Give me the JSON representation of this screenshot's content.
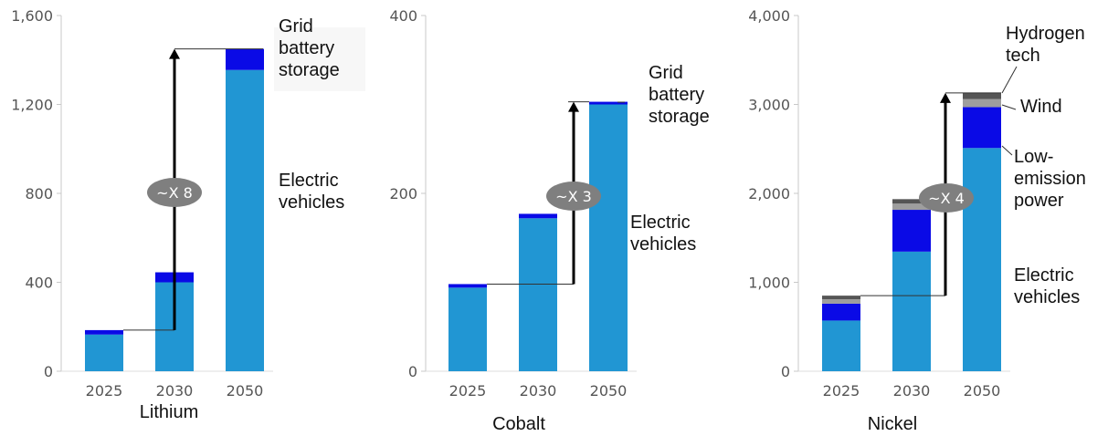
{
  "chart_data": [
    {
      "type": "bar",
      "title": "Lithium",
      "categories": [
        "2025",
        "2030",
        "2050"
      ],
      "ylim": [
        0,
        1600
      ],
      "yticks": [
        "0",
        "400",
        "800",
        "1,200",
        "1,600"
      ],
      "series": [
        {
          "name": "Electric vehicles",
          "values": [
            165,
            400,
            1355
          ],
          "color": "#2196d3"
        },
        {
          "name": "Grid battery storage",
          "values": [
            20,
            45,
            95
          ],
          "color": "#0a0ae6"
        }
      ],
      "multiplier": "~X 8",
      "annotations": [
        {
          "text": [
            "Grid",
            "battery",
            "storage"
          ]
        },
        {
          "text": [
            "Electric",
            "vehicles"
          ]
        }
      ]
    },
    {
      "type": "bar",
      "title": "Cobalt",
      "categories": [
        "2025",
        "2030",
        "2050"
      ],
      "ylim": [
        0,
        400
      ],
      "yticks": [
        "0",
        "200",
        "400"
      ],
      "series": [
        {
          "name": "Electric vehicles",
          "values": [
            94,
            172,
            300
          ],
          "color": "#2196d3"
        },
        {
          "name": "Grid battery storage",
          "values": [
            4,
            5,
            3
          ],
          "color": "#0a0ae6"
        }
      ],
      "multiplier": "~X 3",
      "annotations": [
        {
          "text": [
            "Grid",
            "battery",
            "storage"
          ]
        },
        {
          "text": [
            "Electric",
            "vehicles"
          ]
        }
      ]
    },
    {
      "type": "bar",
      "title": "Nickel",
      "categories": [
        "2025",
        "2030",
        "2050"
      ],
      "ylim": [
        0,
        4000
      ],
      "yticks": [
        "0",
        "1,000",
        "2,000",
        "3,000",
        "4,000"
      ],
      "series": [
        {
          "name": "Electric vehicles",
          "values": [
            570,
            1345,
            2510
          ],
          "color": "#2196d3"
        },
        {
          "name": "Low-emission power",
          "values": [
            190,
            470,
            460
          ],
          "color": "#0a0ae6"
        },
        {
          "name": "Wind",
          "values": [
            50,
            70,
            90
          ],
          "color": "#9e9e9e"
        },
        {
          "name": "Hydrogen tech",
          "values": [
            40,
            50,
            70
          ],
          "color": "#555555"
        }
      ],
      "multiplier": "~X 4",
      "annotations": [
        {
          "text": [
            "Hydrogen",
            "tech"
          ]
        },
        {
          "text": [
            "Wind"
          ]
        },
        {
          "text": [
            "Low-",
            "emission",
            "power"
          ]
        },
        {
          "text": [
            "Electric",
            "vehicles"
          ]
        }
      ]
    }
  ]
}
